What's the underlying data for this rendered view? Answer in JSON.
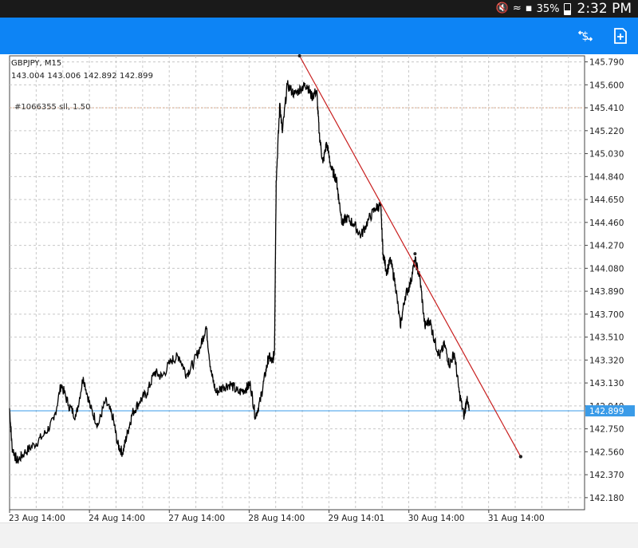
{
  "status_bar": {
    "battery": "35%",
    "time": "2:32 PM"
  },
  "toolbar": {
    "icons": [
      "trade-icon",
      "new-order-icon"
    ]
  },
  "chart_header": {
    "symbol": "GBPJPY, M15",
    "ohlc": "143.004 143.006 142.892 142.899",
    "order_label": "#1066355 sll, 1.50"
  },
  "colors": {
    "status_bar": "#1a1a1a",
    "app_bar": "#0d84f5",
    "price_line": "#000000",
    "bid_line": "#3a9be8",
    "order_line": "#d9a98a",
    "trendline": "#c81e1e",
    "grid": "#c8c8c8"
  },
  "chart_data": {
    "type": "line",
    "title": "GBPJPY, M15",
    "y_ticks": [
      "145.790",
      "145.600",
      "145.410",
      "145.220",
      "145.030",
      "144.840",
      "144.650",
      "144.460",
      "144.270",
      "144.080",
      "143.890",
      "143.700",
      "143.510",
      "143.320",
      "143.130",
      "142.940",
      "142.750",
      "142.560",
      "142.370",
      "142.180"
    ],
    "ylim": [
      142.08,
      145.84
    ],
    "x_ticks": [
      "23 Aug 14:00",
      "24 Aug 14:00",
      "27 Aug 14:00",
      "28 Aug 14:00",
      "29 Aug 14:01",
      "30 Aug 14:00",
      "31 Aug 14:00"
    ],
    "current_price": "142.899",
    "current_price_value": 142.899,
    "order_level": 145.41,
    "series": [
      {
        "values": [
          [
            0,
            142.92
          ],
          [
            0.1,
            142.6
          ],
          [
            0.3,
            142.48
          ],
          [
            0.6,
            142.55
          ],
          [
            1.0,
            142.62
          ],
          [
            1.4,
            142.7
          ],
          [
            1.8,
            142.82
          ],
          [
            2.1,
            143.12
          ],
          [
            2.4,
            142.95
          ],
          [
            2.7,
            142.85
          ],
          [
            3.0,
            143.18
          ],
          [
            3.3,
            142.92
          ],
          [
            3.6,
            142.78
          ],
          [
            3.9,
            142.98
          ],
          [
            4.2,
            142.85
          ],
          [
            4.4,
            142.62
          ],
          [
            4.6,
            142.55
          ],
          [
            4.8,
            142.72
          ],
          [
            5.0,
            142.88
          ],
          [
            5.3,
            142.98
          ],
          [
            5.6,
            143.05
          ],
          [
            5.9,
            143.22
          ],
          [
            6.2,
            143.18
          ],
          [
            6.6,
            143.32
          ],
          [
            6.9,
            143.35
          ],
          [
            7.2,
            143.2
          ],
          [
            7.5,
            143.3
          ],
          [
            7.8,
            143.45
          ],
          [
            8.0,
            143.6
          ],
          [
            8.2,
            143.22
          ],
          [
            8.4,
            143.05
          ],
          [
            8.7,
            143.1
          ],
          [
            9.0,
            143.12
          ],
          [
            9.3,
            143.05
          ],
          [
            9.6,
            143.08
          ],
          [
            9.8,
            143.12
          ],
          [
            10.0,
            142.85
          ],
          [
            10.2,
            142.98
          ],
          [
            10.4,
            143.2
          ],
          [
            10.55,
            143.35
          ],
          [
            10.7,
            143.3
          ],
          [
            10.78,
            143.4
          ],
          [
            10.85,
            144.8
          ],
          [
            11.0,
            145.45
          ],
          [
            11.1,
            145.2
          ],
          [
            11.3,
            145.6
          ],
          [
            11.6,
            145.52
          ],
          [
            11.9,
            145.58
          ],
          [
            12.1,
            145.6
          ],
          [
            12.3,
            145.5
          ],
          [
            12.5,
            145.55
          ],
          [
            12.6,
            145.2
          ],
          [
            12.75,
            144.95
          ],
          [
            12.9,
            145.12
          ],
          [
            13.1,
            144.9
          ],
          [
            13.3,
            144.82
          ],
          [
            13.4,
            144.65
          ],
          [
            13.55,
            144.45
          ],
          [
            13.7,
            144.5
          ],
          [
            14.0,
            144.45
          ],
          [
            14.3,
            144.35
          ],
          [
            14.6,
            144.48
          ],
          [
            14.9,
            144.58
          ],
          [
            15.1,
            144.6
          ],
          [
            15.2,
            144.2
          ],
          [
            15.35,
            144.05
          ],
          [
            15.5,
            144.15
          ],
          [
            15.7,
            143.95
          ],
          [
            15.9,
            143.6
          ],
          [
            16.1,
            143.85
          ],
          [
            16.3,
            143.95
          ],
          [
            16.5,
            144.15
          ],
          [
            16.7,
            144.0
          ],
          [
            16.9,
            143.6
          ],
          [
            17.1,
            143.65
          ],
          [
            17.3,
            143.48
          ],
          [
            17.5,
            143.35
          ],
          [
            17.7,
            143.45
          ],
          [
            17.9,
            143.28
          ],
          [
            18.1,
            143.38
          ],
          [
            18.3,
            143.05
          ],
          [
            18.5,
            142.85
          ],
          [
            18.6,
            143.0
          ],
          [
            18.7,
            142.899
          ]
        ]
      }
    ],
    "trendline": {
      "start": [
        11.8,
        145.84
      ],
      "end": [
        20.8,
        142.52
      ],
      "mid_marker": [
        16.5,
        144.2
      ]
    },
    "x_domain": [
      0,
      23.4
    ],
    "grid": true
  }
}
